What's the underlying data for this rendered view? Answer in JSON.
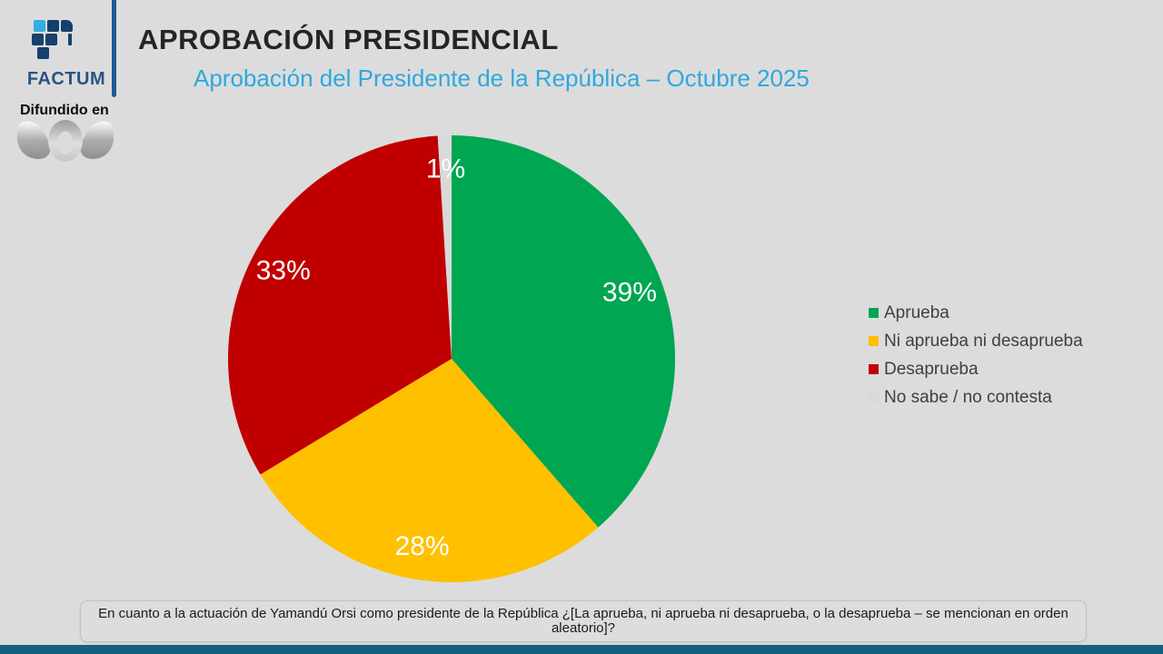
{
  "page": {
    "background_color": "#DCDCDC",
    "footer_bar_color": "#15607E"
  },
  "header": {
    "brand_name": "FACTUM",
    "title": "APROBACIÓN PRESIDENCIAL",
    "subtitle": "Aprobación del Presidente de la República – Octubre 2025",
    "broadcast_label": "Difundido en",
    "colors": {
      "title": "#252525",
      "subtitle": "#2FA8DF",
      "brand_navy": "#2A5380",
      "divider_blue": "#1C5A94",
      "logo_cyan": "#35ACE3",
      "logo_navy": "#17406E"
    }
  },
  "chart_data": {
    "type": "pie",
    "title": "Aprobación del Presidente de la República – Octubre 2025",
    "labels": [
      "Aprueba",
      "Ni aprueba ni desaprueba",
      "Desaprueba",
      "No sabe / no contesta"
    ],
    "values": [
      39,
      28,
      33,
      1
    ],
    "data_labels": [
      "39%",
      "28%",
      "33%",
      "1%"
    ],
    "colors": [
      "#00A651",
      "#FFC000",
      "#C00000",
      "#D9D9D9"
    ],
    "data_label_color": "#FFFFFF",
    "legend_position": "right",
    "start_angle_deg": 0,
    "direction": "clockwise"
  },
  "footnote": {
    "text": "En cuanto a la actuación de Yamandú Orsi como presidente de la República ¿[La aprueba, ni aprueba ni desaprueba, o la desaprueba – se mencionan en orden aleatorio]?"
  }
}
